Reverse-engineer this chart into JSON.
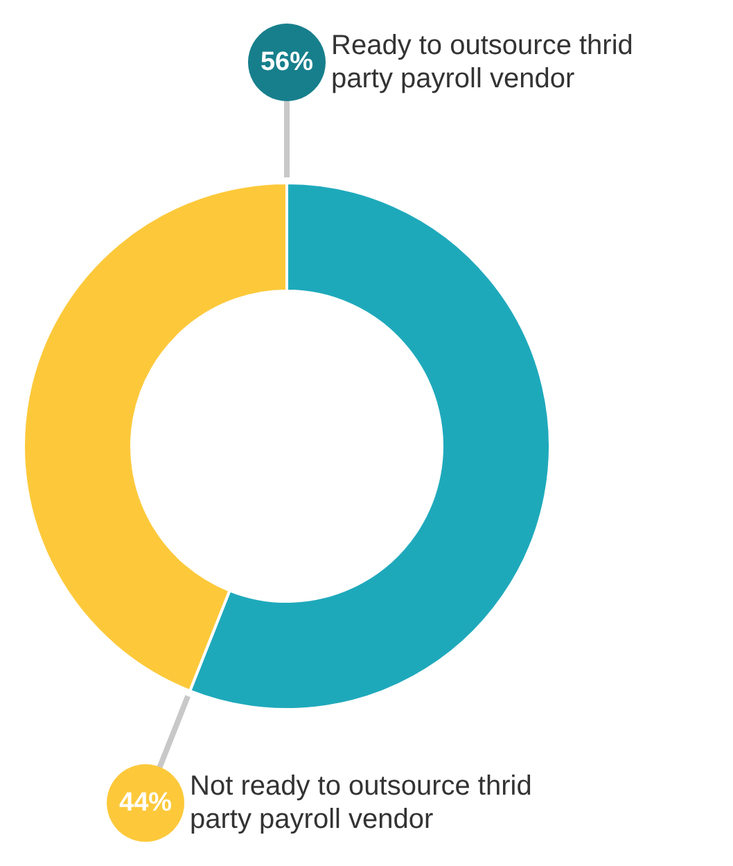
{
  "chart_data": {
    "type": "donut",
    "categories": [
      "Ready to outsource thrid party payroll vendor",
      "Not ready to outsource thrid party payroll vendor"
    ],
    "values": [
      56,
      44
    ],
    "colors": [
      "#1ea9bb",
      "#fdc93b"
    ],
    "value_labels": [
      "56%",
      "44%"
    ],
    "legend": false
  }
}
